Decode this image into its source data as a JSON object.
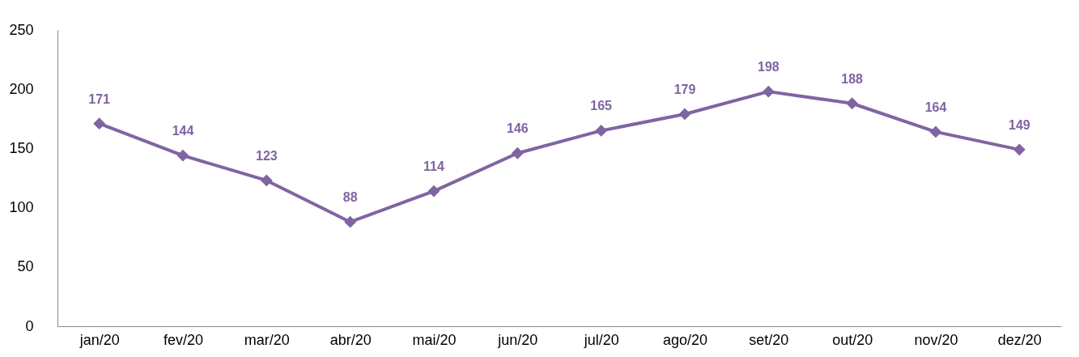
{
  "chart_data": {
    "type": "line",
    "categories": [
      "jan/20",
      "fev/20",
      "mar/20",
      "abr/20",
      "mai/20",
      "jun/20",
      "jul/20",
      "ago/20",
      "set/20",
      "out/20",
      "nov/20",
      "dez/20"
    ],
    "series": [
      {
        "color": "#8064a2",
        "values": [
          171,
          144,
          123,
          88,
          114,
          146,
          165,
          179,
          198,
          188,
          164,
          149
        ]
      }
    ],
    "ylim": [
      0,
      250
    ],
    "yticks": [
      0,
      50,
      100,
      150,
      200,
      250
    ],
    "data_labels": true,
    "marker": "diamond",
    "line_style": "solid",
    "grid": false,
    "legend": false
  }
}
